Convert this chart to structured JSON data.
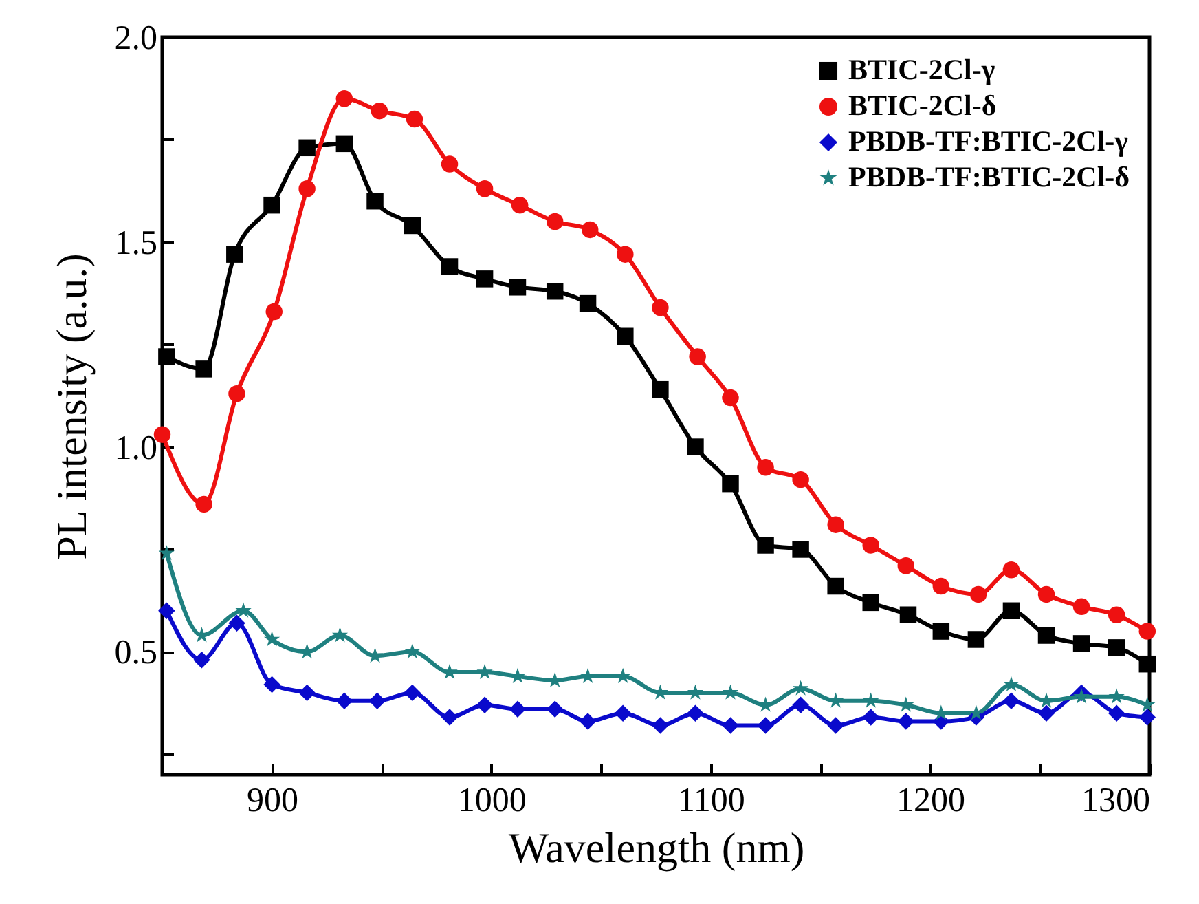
{
  "chart_data": {
    "type": "line",
    "xlabel": "Wavelength (nm)",
    "ylabel": "PL intensity (a.u.)",
    "xlim": [
      850,
      1300
    ],
    "xticks": [
      {
        "value": 850,
        "label": null
      },
      900,
      {
        "value": 950,
        "label": null
      },
      1000,
      {
        "value": 1050,
        "label": null
      },
      1100,
      {
        "value": 1150,
        "label": null
      },
      1200,
      {
        "value": 1250,
        "label": null
      },
      1300
    ],
    "ylim": [
      0.2,
      2.0
    ],
    "yticks": [
      {
        "value": 0.25,
        "label": null
      },
      0.5,
      {
        "value": 0.75,
        "label": null
      },
      {
        "value": 1.0,
        "label": "1.0"
      },
      {
        "value": 1.25,
        "label": null
      },
      1.5,
      {
        "value": 1.75,
        "label": null
      },
      {
        "value": 2.0,
        "label": "2.0"
      }
    ],
    "grid": false,
    "legend": "top right",
    "line_style": "solid",
    "series": [
      {
        "name": "BTIC-2Cl-γ",
        "color": "#000000",
        "marker": "square",
        "x": [
          852,
          869,
          883,
          900,
          916,
          933,
          947,
          964,
          981,
          997,
          1012,
          1029,
          1044,
          1061,
          1077,
          1093,
          1109,
          1125,
          1141,
          1157,
          1173,
          1190,
          1205,
          1221,
          1237,
          1253,
          1269,
          1285,
          1299
        ],
        "values": [
          1.22,
          1.19,
          1.47,
          1.59,
          1.73,
          1.74,
          1.6,
          1.54,
          1.44,
          1.41,
          1.39,
          1.38,
          1.35,
          1.27,
          1.14,
          1.0,
          0.91,
          0.76,
          0.75,
          0.66,
          0.62,
          0.59,
          0.55,
          0.53,
          0.6,
          0.54,
          0.52,
          0.51,
          0.47
        ]
      },
      {
        "name": "BTIC-2Cl-δ",
        "color": "#ee1111",
        "marker": "circle",
        "x": [
          850,
          869,
          884,
          901,
          916,
          933,
          949,
          965,
          981,
          997,
          1013,
          1029,
          1045,
          1061,
          1077,
          1094,
          1109,
          1125,
          1141,
          1157,
          1173,
          1189,
          1205,
          1222,
          1237,
          1253,
          1269,
          1285,
          1299
        ],
        "values": [
          1.03,
          0.86,
          1.13,
          1.33,
          1.63,
          1.85,
          1.82,
          1.8,
          1.69,
          1.63,
          1.59,
          1.55,
          1.53,
          1.47,
          1.34,
          1.22,
          1.12,
          0.95,
          0.92,
          0.81,
          0.76,
          0.71,
          0.66,
          0.64,
          0.7,
          0.64,
          0.61,
          0.59,
          0.55
        ]
      },
      {
        "name": "PBDB-TF:BTIC-2Cl-γ",
        "color": "#0a0acc",
        "marker": "diamond",
        "x": [
          852,
          868,
          884,
          900,
          916,
          933,
          948,
          964,
          981,
          997,
          1012,
          1029,
          1044,
          1060,
          1077,
          1093,
          1109,
          1125,
          1141,
          1157,
          1173,
          1189,
          1205,
          1221,
          1237,
          1253,
          1269,
          1285,
          1299
        ],
        "values": [
          0.6,
          0.48,
          0.57,
          0.42,
          0.4,
          0.38,
          0.38,
          0.4,
          0.34,
          0.37,
          0.36,
          0.36,
          0.33,
          0.35,
          0.32,
          0.35,
          0.32,
          0.32,
          0.37,
          0.32,
          0.34,
          0.33,
          0.33,
          0.34,
          0.38,
          0.35,
          0.4,
          0.35,
          0.34
        ]
      },
      {
        "name": "PBDB-TF:BTIC-2Cl-δ",
        "color": "#1f8080",
        "marker": "star",
        "x": [
          852,
          868,
          887,
          900,
          916,
          931,
          947,
          964,
          981,
          997,
          1012,
          1029,
          1044,
          1060,
          1077,
          1093,
          1109,
          1125,
          1141,
          1157,
          1173,
          1189,
          1205,
          1221,
          1237,
          1253,
          1269,
          1285,
          1299
        ],
        "values": [
          0.74,
          0.54,
          0.6,
          0.53,
          0.5,
          0.54,
          0.49,
          0.5,
          0.45,
          0.45,
          0.44,
          0.43,
          0.44,
          0.44,
          0.4,
          0.4,
          0.4,
          0.37,
          0.41,
          0.38,
          0.38,
          0.37,
          0.35,
          0.35,
          0.42,
          0.38,
          0.39,
          0.39,
          0.37
        ]
      }
    ]
  }
}
